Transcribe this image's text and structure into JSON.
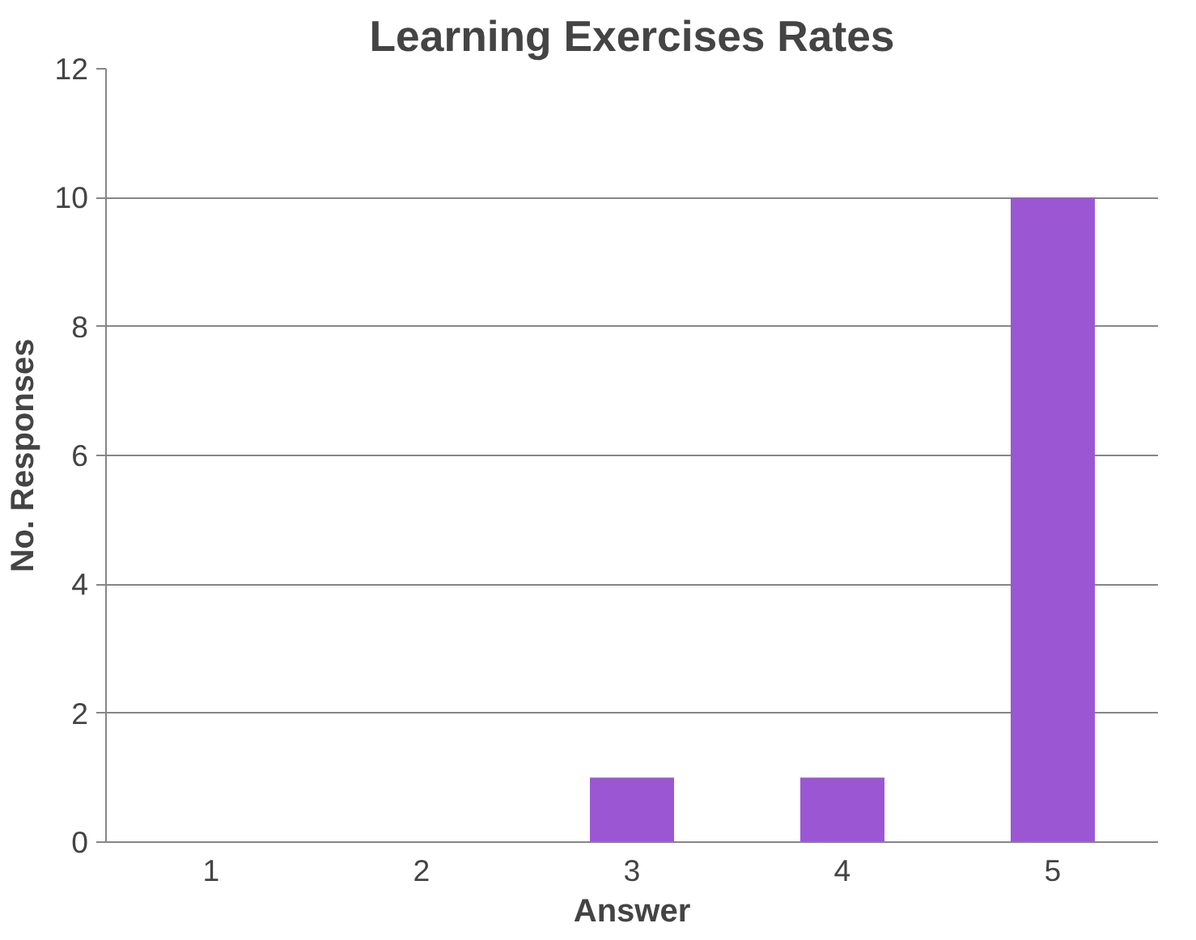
{
  "chart_data": {
    "type": "bar",
    "title": "Learning Exercises Rates",
    "xlabel": "Answer",
    "ylabel": "No. Responses",
    "categories": [
      "1",
      "2",
      "3",
      "4",
      "5"
    ],
    "series": [
      {
        "color": "#9b57d3",
        "values": [
          0,
          0,
          1,
          1,
          10
        ]
      }
    ],
    "ylim": [
      0,
      12
    ],
    "yticks": [
      0,
      2,
      4,
      6,
      8,
      10,
      12
    ],
    "grid": "y"
  }
}
